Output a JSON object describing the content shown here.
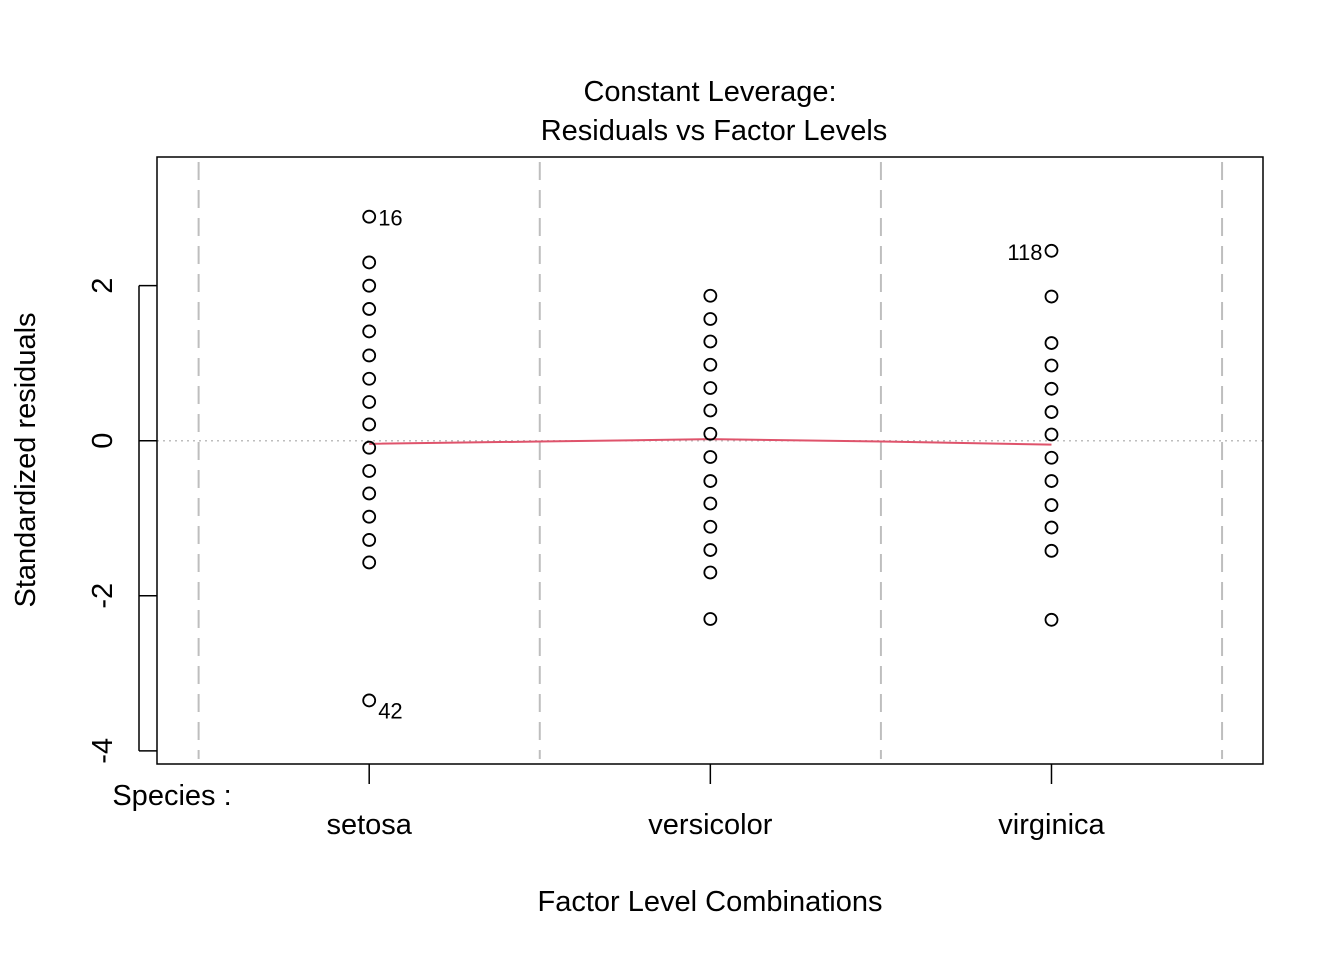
{
  "chart_data": {
    "type": "scatter",
    "title": "Constant Leverage:",
    "subtitle": "Residuals vs Factor Levels",
    "xlabel": "Factor Level Combinations",
    "ylabel": "Standardized residuals",
    "factor_label": "Species :",
    "categories": [
      "setosa",
      "versicolor",
      "virginica"
    ],
    "xlim": [
      0.378,
      3.62
    ],
    "ylim": [
      -4.17,
      3.66
    ],
    "yticks": [
      -4,
      -2,
      0,
      2
    ],
    "ytick_labels": [
      "-4",
      "-2",
      "0",
      "2"
    ],
    "series": [
      {
        "name": "setosa",
        "x": 1,
        "values": [
          2.89,
          2.3,
          2.0,
          1.7,
          1.41,
          1.1,
          0.8,
          0.5,
          0.21,
          -0.09,
          -0.39,
          -0.68,
          -0.98,
          -1.28,
          -1.57,
          -3.35
        ]
      },
      {
        "name": "versicolor",
        "x": 2,
        "values": [
          1.87,
          1.57,
          1.28,
          0.98,
          0.68,
          0.39,
          0.09,
          -0.21,
          -0.52,
          -0.81,
          -1.11,
          -1.41,
          -1.7,
          -2.3
        ]
      },
      {
        "name": "virginica",
        "x": 3,
        "values": [
          2.45,
          1.86,
          1.26,
          0.97,
          0.67,
          0.37,
          0.08,
          -0.22,
          -0.52,
          -0.83,
          -1.12,
          -1.42,
          -2.31
        ]
      }
    ],
    "annotations": [
      {
        "label": "16",
        "x": 1,
        "y": 2.89,
        "side": "right"
      },
      {
        "label": "42",
        "x": 1,
        "y": -3.35,
        "side": "right-below"
      },
      {
        "label": "118",
        "x": 3,
        "y": 2.45,
        "side": "left"
      }
    ],
    "smooth_line": {
      "x": [
        1,
        1.5,
        2,
        2.5,
        3
      ],
      "y": [
        -0.04,
        -0.01,
        0.02,
        -0.01,
        -0.05
      ]
    },
    "reference_line_y": 0,
    "separator_lines_x": [
      0.5,
      1.5,
      2.5,
      3.5
    ],
    "colors": {
      "points": "#000000",
      "smooth": "#DF536B",
      "separator": "#BEBEBE",
      "reference": "#BEBEBE"
    },
    "grid": false,
    "legend": "none"
  }
}
